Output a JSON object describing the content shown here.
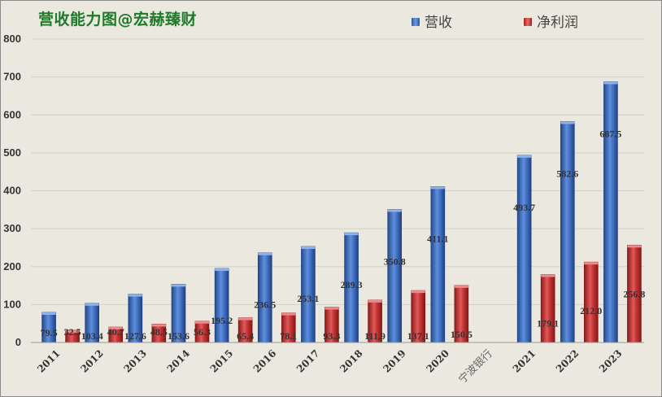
{
  "title": "营收能力图@宏赫臻财",
  "legend": {
    "revenue": "营收",
    "net_profit": "净利润"
  },
  "colors": {
    "revenue": "#3a6fc4",
    "net_profit": "#cc3333",
    "title": "#1f7a2a"
  },
  "chart_data": {
    "type": "bar",
    "title": "营收能力图@宏赫臻财",
    "categories": [
      "2011",
      "2012",
      "2013",
      "2014",
      "2015",
      "2016",
      "2017",
      "2018",
      "2019",
      "2020",
      "宁波银行",
      "2021",
      "2022",
      "2023"
    ],
    "series": [
      {
        "name": "营收",
        "values": [
          79.5,
          103.4,
          127.6,
          153.6,
          195.2,
          236.5,
          253.1,
          289.3,
          350.8,
          411.1,
          null,
          493.7,
          582.6,
          687.5
        ]
      },
      {
        "name": "净利润",
        "values": [
          32.5,
          40.7,
          48.5,
          56.3,
          65.4,
          78.1,
          93.3,
          111.9,
          137.1,
          150.5,
          null,
          179.1,
          212.0,
          256.8
        ]
      }
    ],
    "data_labels": {
      "营收": [
        "79.5",
        "103.4",
        "127.6",
        "153.6",
        "195.2",
        "236.5",
        "253.1",
        "289.3",
        "350.8",
        "411.1",
        "",
        "493.7",
        "582.6",
        "687.5"
      ],
      "净利润": [
        "32.5",
        "40.7",
        "48.5",
        "56.3",
        "65.4",
        "78.1",
        "93.3",
        "111.9",
        "137.1",
        "150.5",
        "",
        "179.1",
        "212.0",
        "256.8"
      ]
    },
    "ylim": [
      0,
      800
    ],
    "yticks": [
      "0",
      "100",
      "200",
      "300",
      "400",
      "500",
      "600",
      "700",
      "800"
    ],
    "xlabel": "",
    "ylabel": "",
    "grid": true,
    "legend_position": "top-right"
  }
}
